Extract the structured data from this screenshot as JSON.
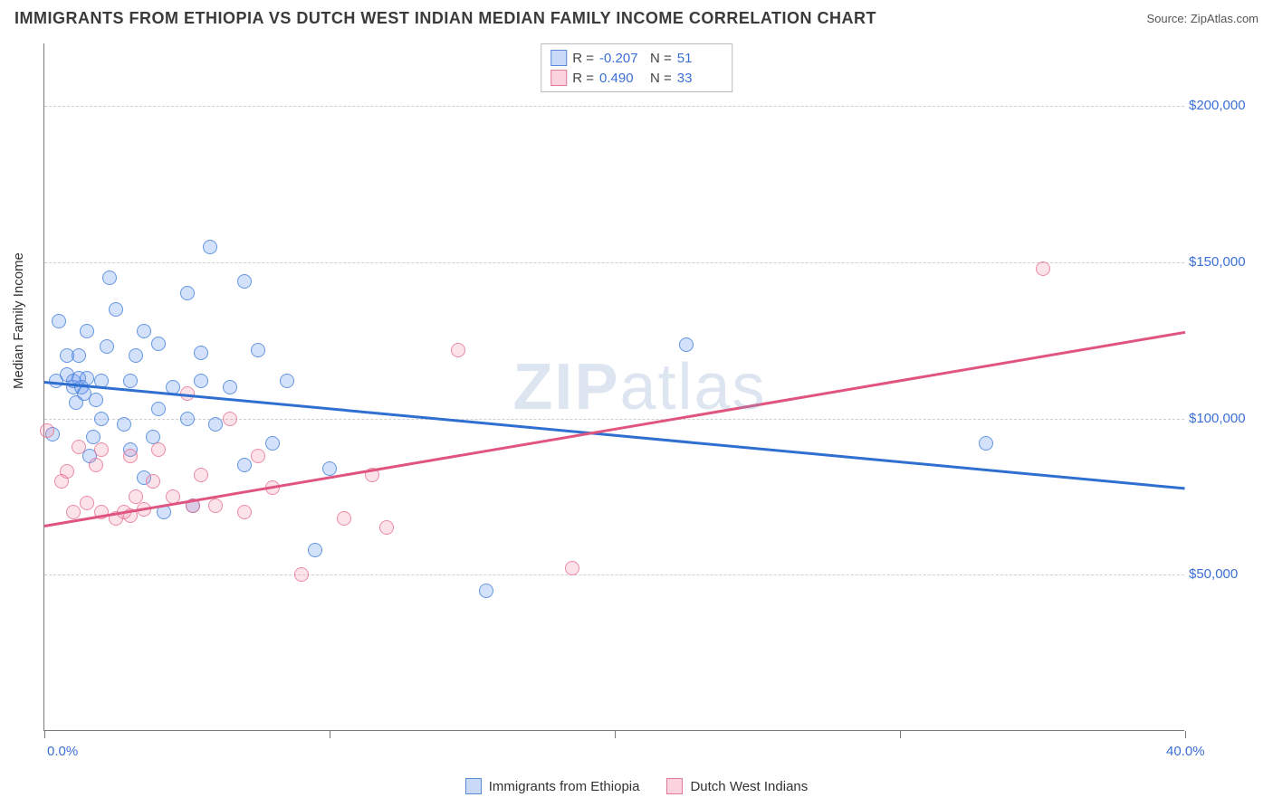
{
  "title": "IMMIGRANTS FROM ETHIOPIA VS DUTCH WEST INDIAN MEDIAN FAMILY INCOME CORRELATION CHART",
  "source": "Source: ZipAtlas.com",
  "watermark": "ZIPatlas",
  "chart": {
    "type": "scatter",
    "y_label": "Median Family Income",
    "xlim": [
      0,
      40
    ],
    "ylim": [
      0,
      220000
    ],
    "x_ticks": [
      0,
      10,
      20,
      30,
      40
    ],
    "x_tick_labels": [
      "0.0%",
      "",
      "",
      "",
      "40.0%"
    ],
    "y_ticks": [
      50000,
      100000,
      150000,
      200000
    ],
    "y_tick_labels": [
      "$50,000",
      "$100,000",
      "$150,000",
      "$200,000"
    ],
    "grid_color": "#cfcfcf",
    "axis_color": "#7a7a7a",
    "tick_label_color": "#3b6fd6",
    "background_color": "#ffffff",
    "marker_radius": 8,
    "series": [
      {
        "name": "Immigrants from Ethiopia",
        "color_fill": "rgba(100,149,237,0.28)",
        "color_stroke": "rgba(70,130,220,0.8)",
        "R": "-0.207",
        "N": "51",
        "trend": {
          "y_at_xmin": 112000,
          "y_at_xmax": 78000,
          "color": "#2f6fd0",
          "width": 2.5
        },
        "points": [
          [
            0.3,
            95000
          ],
          [
            0.4,
            112000
          ],
          [
            0.5,
            131000
          ],
          [
            0.8,
            120000
          ],
          [
            0.8,
            114000
          ],
          [
            1.0,
            110000
          ],
          [
            1.0,
            112000
          ],
          [
            1.1,
            105000
          ],
          [
            1.2,
            120000
          ],
          [
            1.2,
            113000
          ],
          [
            1.3,
            110000
          ],
          [
            1.4,
            108000
          ],
          [
            1.5,
            113000
          ],
          [
            1.5,
            128000
          ],
          [
            1.6,
            88000
          ],
          [
            1.7,
            94000
          ],
          [
            1.8,
            106000
          ],
          [
            2.0,
            112000
          ],
          [
            2.0,
            100000
          ],
          [
            2.2,
            123000
          ],
          [
            2.3,
            145000
          ],
          [
            2.5,
            135000
          ],
          [
            2.8,
            98000
          ],
          [
            3.0,
            90000
          ],
          [
            3.0,
            112000
          ],
          [
            3.2,
            120000
          ],
          [
            3.5,
            128000
          ],
          [
            3.5,
            81000
          ],
          [
            3.8,
            94000
          ],
          [
            4.0,
            103000
          ],
          [
            4.0,
            124000
          ],
          [
            4.2,
            70000
          ],
          [
            4.5,
            110000
          ],
          [
            5.0,
            100000
          ],
          [
            5.0,
            140000
          ],
          [
            5.2,
            72000
          ],
          [
            5.5,
            121000
          ],
          [
            5.5,
            112000
          ],
          [
            5.8,
            155000
          ],
          [
            6.0,
            98000
          ],
          [
            6.5,
            110000
          ],
          [
            7.0,
            85000
          ],
          [
            7.0,
            144000
          ],
          [
            7.5,
            122000
          ],
          [
            8.0,
            92000
          ],
          [
            8.5,
            112000
          ],
          [
            9.5,
            58000
          ],
          [
            10.0,
            84000
          ],
          [
            15.5,
            45000
          ],
          [
            22.5,
            123500
          ],
          [
            33.0,
            92000
          ]
        ]
      },
      {
        "name": "Dutch West Indians",
        "color_fill": "rgba(240,128,160,0.22)",
        "color_stroke": "rgba(230,110,140,0.75)",
        "R": "0.490",
        "N": "33",
        "trend": {
          "y_at_xmin": 66000,
          "y_at_xmax": 128000,
          "color": "#e0557f",
          "width": 2.5
        },
        "points": [
          [
            0.1,
            96000
          ],
          [
            0.6,
            80000
          ],
          [
            0.8,
            83000
          ],
          [
            1.0,
            70000
          ],
          [
            1.2,
            91000
          ],
          [
            1.5,
            73000
          ],
          [
            1.8,
            85000
          ],
          [
            2.0,
            70000
          ],
          [
            2.0,
            90000
          ],
          [
            2.5,
            68000
          ],
          [
            2.8,
            70000
          ],
          [
            3.0,
            69000
          ],
          [
            3.0,
            88000
          ],
          [
            3.2,
            75000
          ],
          [
            3.5,
            71000
          ],
          [
            3.8,
            80000
          ],
          [
            4.0,
            90000
          ],
          [
            4.5,
            75000
          ],
          [
            5.0,
            108000
          ],
          [
            5.2,
            72000
          ],
          [
            5.5,
            82000
          ],
          [
            6.0,
            72000
          ],
          [
            6.5,
            100000
          ],
          [
            7.0,
            70000
          ],
          [
            7.5,
            88000
          ],
          [
            8.0,
            78000
          ],
          [
            9.0,
            50000
          ],
          [
            10.5,
            68000
          ],
          [
            11.5,
            82000
          ],
          [
            12.0,
            65000
          ],
          [
            14.5,
            122000
          ],
          [
            18.5,
            52000
          ],
          [
            35.0,
            148000
          ]
        ]
      }
    ]
  },
  "stats_legend": {
    "rows": [
      {
        "swatch": "blue",
        "R": "-0.207",
        "N": "51"
      },
      {
        "swatch": "pink",
        "R": "0.490",
        "N": "33"
      }
    ]
  },
  "bottom_legend": [
    {
      "swatch": "blue",
      "label": "Immigrants from Ethiopia"
    },
    {
      "swatch": "pink",
      "label": "Dutch West Indians"
    }
  ]
}
